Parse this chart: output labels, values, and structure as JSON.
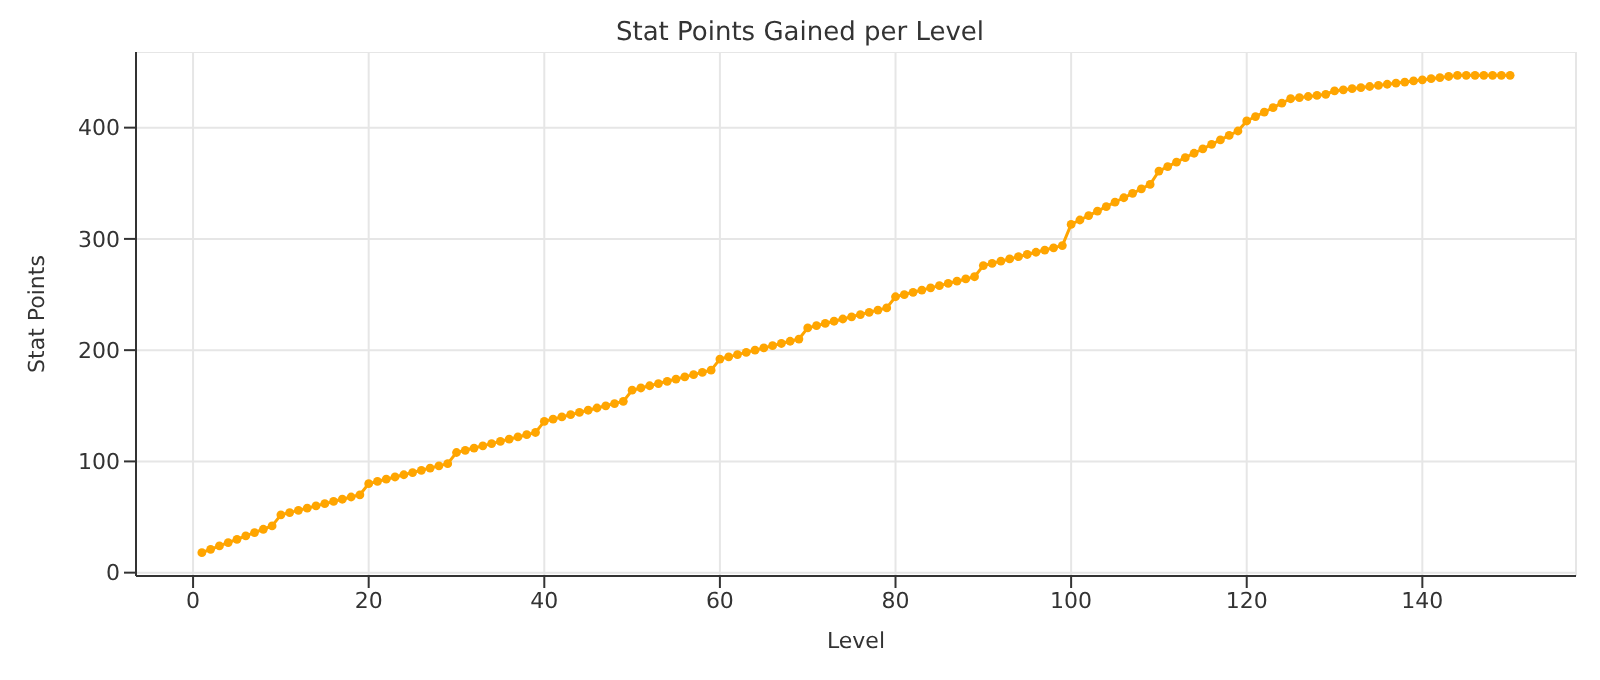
{
  "chart_data": {
    "type": "line",
    "title": "Stat Points Gained per Level",
    "xlabel": "Level",
    "ylabel": "Stat Points",
    "x": [
      1,
      2,
      3,
      4,
      5,
      6,
      7,
      8,
      9,
      10,
      11,
      12,
      13,
      14,
      15,
      16,
      17,
      18,
      19,
      20,
      21,
      22,
      23,
      24,
      25,
      26,
      27,
      28,
      29,
      30,
      31,
      32,
      33,
      34,
      35,
      36,
      37,
      38,
      39,
      40,
      41,
      42,
      43,
      44,
      45,
      46,
      47,
      48,
      49,
      50,
      51,
      52,
      53,
      54,
      55,
      56,
      57,
      58,
      59,
      60,
      61,
      62,
      63,
      64,
      65,
      66,
      67,
      68,
      69,
      70,
      71,
      72,
      73,
      74,
      75,
      76,
      77,
      78,
      79,
      80,
      81,
      82,
      83,
      84,
      85,
      86,
      87,
      88,
      89,
      90,
      91,
      92,
      93,
      94,
      95,
      96,
      97,
      98,
      99,
      100,
      101,
      102,
      103,
      104,
      105,
      106,
      107,
      108,
      109,
      110,
      111,
      112,
      113,
      114,
      115,
      116,
      117,
      118,
      119,
      120,
      121,
      122,
      123,
      124,
      125,
      126,
      127,
      128,
      129,
      130,
      131,
      132,
      133,
      134,
      135,
      136,
      137,
      138,
      139,
      140,
      141,
      142,
      143,
      144,
      145,
      146,
      147,
      148,
      149,
      150
    ],
    "series": [
      {
        "color": "#ffa500",
        "values": [
          18,
          21,
          24,
          27,
          30,
          33,
          36,
          39,
          42,
          52,
          54,
          56,
          58,
          60,
          62,
          64,
          66,
          68,
          70,
          80,
          82,
          84,
          86,
          88,
          90,
          92,
          94,
          96,
          98,
          108,
          110,
          112,
          114,
          116,
          118,
          120,
          122,
          124,
          126,
          136,
          138,
          140,
          142,
          144,
          146,
          148,
          150,
          152,
          154,
          164,
          166,
          168,
          170,
          172,
          174,
          176,
          178,
          180,
          182,
          192,
          194,
          196,
          198,
          200,
          202,
          204,
          206,
          208,
          210,
          220,
          222,
          224,
          226,
          228,
          230,
          232,
          234,
          236,
          238,
          248,
          250,
          252,
          254,
          256,
          258,
          260,
          262,
          264,
          266,
          276,
          278,
          280,
          282,
          284,
          286,
          288,
          290,
          292,
          294,
          313,
          317,
          321,
          325,
          329,
          333,
          337,
          341,
          345,
          349,
          361,
          365,
          369,
          373,
          377,
          381,
          385,
          389,
          393,
          397,
          406,
          410,
          414,
          418,
          422,
          426,
          427,
          428,
          429,
          430,
          433,
          434,
          435,
          436,
          437,
          438,
          439,
          440,
          441,
          442,
          443,
          444,
          445,
          446,
          447,
          447,
          447,
          447,
          447,
          447,
          447
        ]
      }
    ],
    "xlim": [
      -6.5,
      157.5
    ],
    "xticks": [
      0,
      20,
      40,
      60,
      80,
      100,
      120,
      140
    ],
    "ylim": [
      -3,
      468
    ],
    "yticks": [
      0,
      100,
      200,
      300,
      400
    ],
    "grid": true,
    "marker": "circle",
    "line_style": "solid",
    "legend": false
  }
}
